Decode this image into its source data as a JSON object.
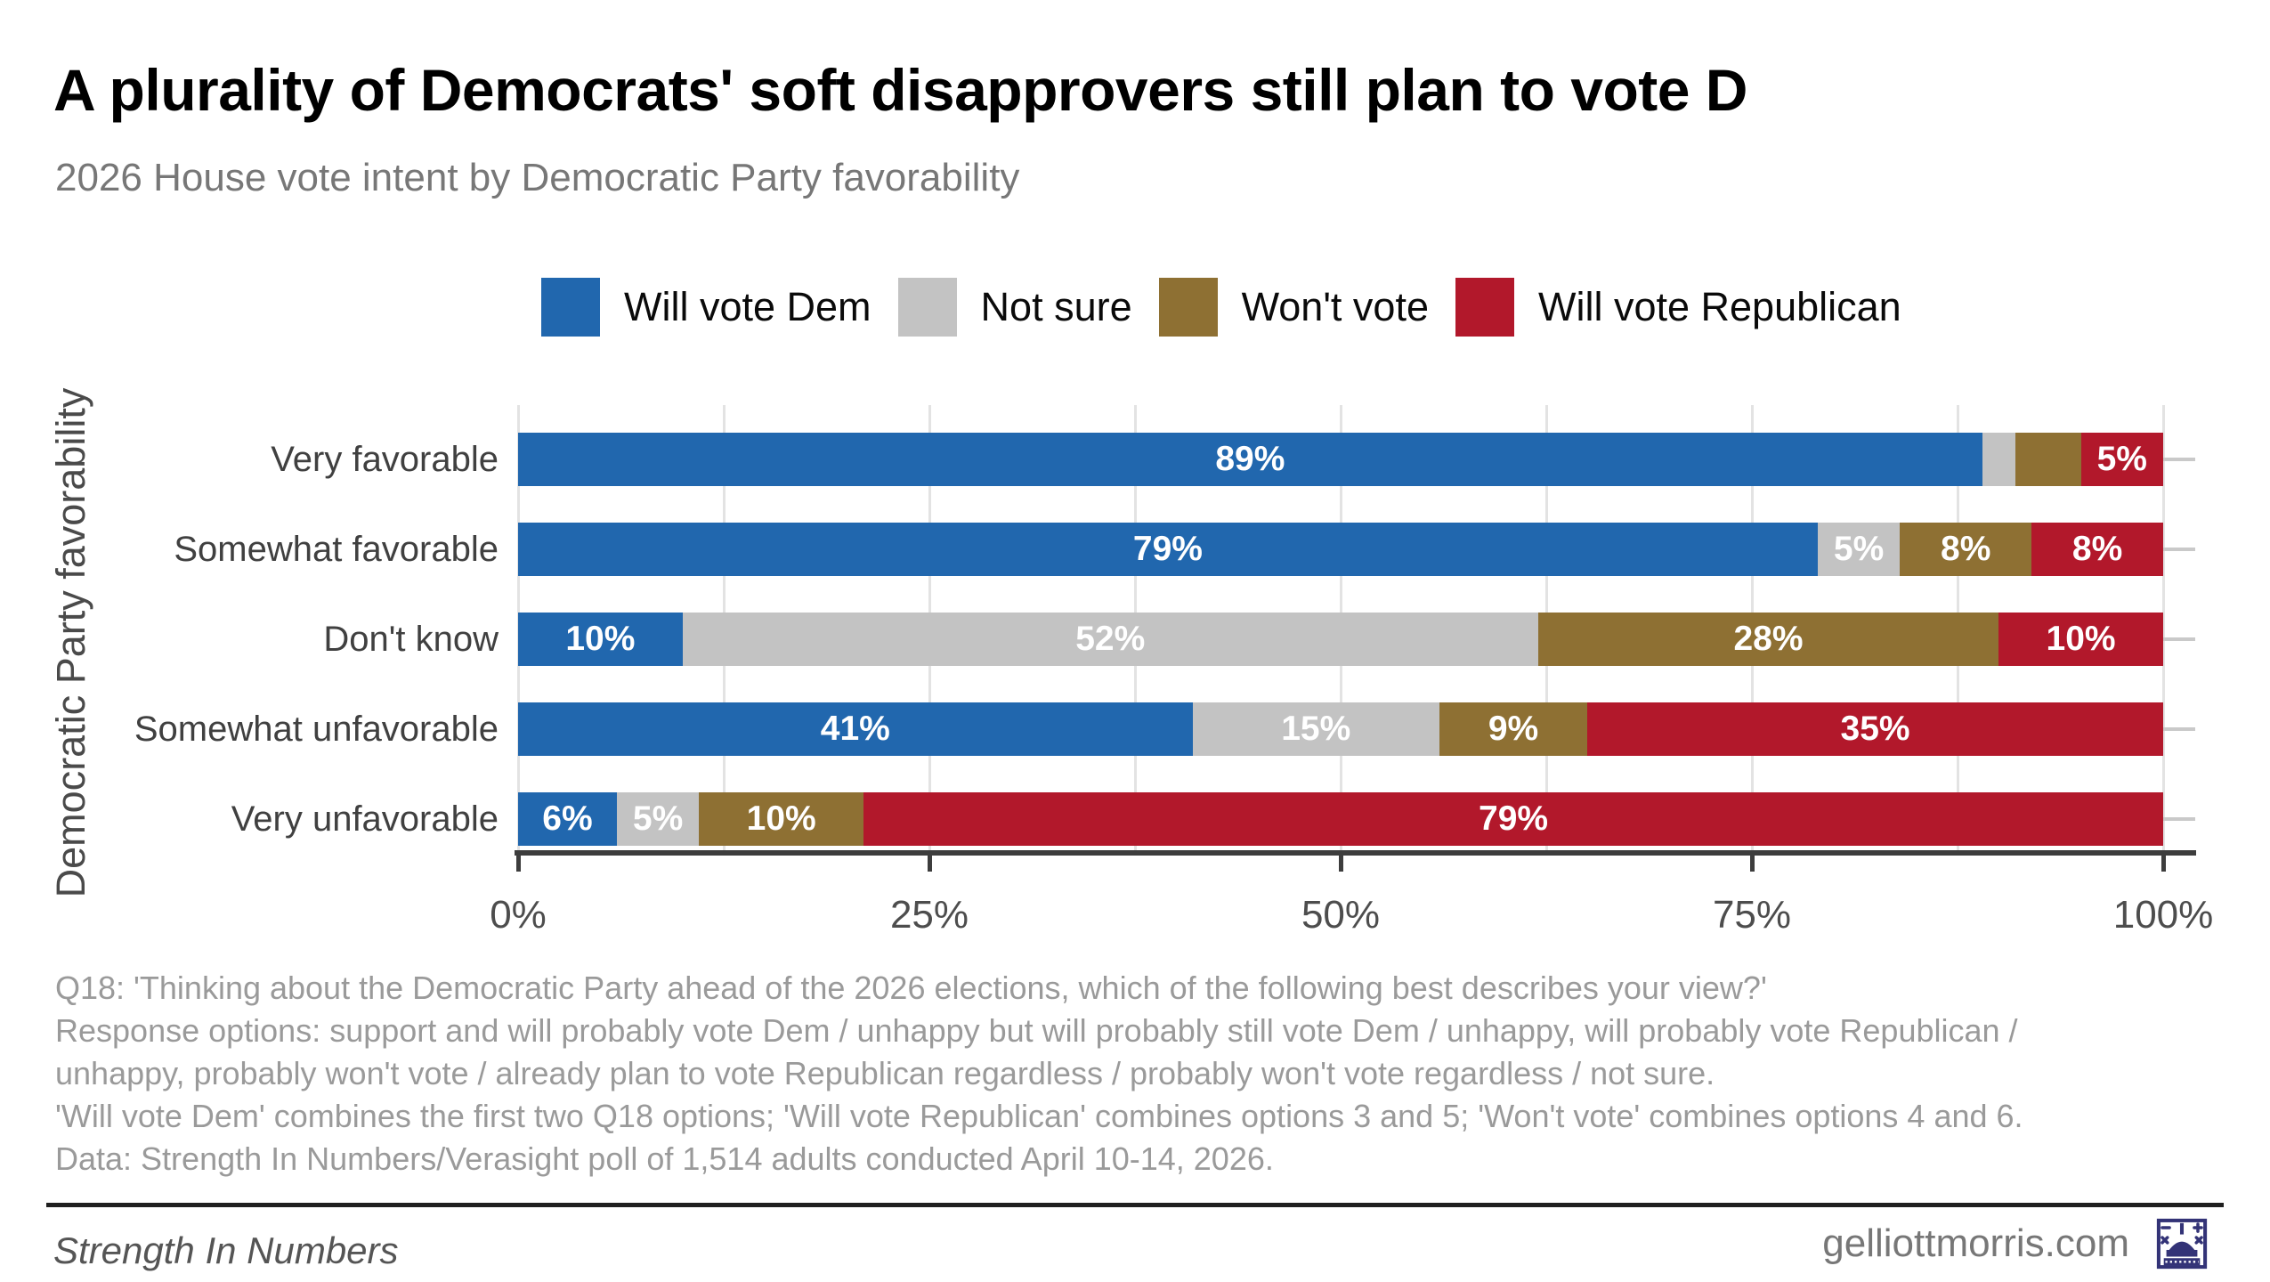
{
  "chart_data": {
    "type": "bar",
    "orientation": "horizontal",
    "stacked": true,
    "title": "A plurality of Democrats' soft disapprovers still plan to vote D",
    "subtitle": "2026 House vote intent by Democratic Party favorability",
    "ylabel": "Democratic Party favorability",
    "xlabel": "",
    "categories": [
      "Very favorable",
      "Somewhat favorable",
      "Don't know",
      "Somewhat unfavorable",
      "Very unfavorable"
    ],
    "series": [
      {
        "name": "Will vote Dem",
        "color": "#2167AE",
        "values": [
          89,
          79,
          10,
          41,
          6
        ]
      },
      {
        "name": "Not sure",
        "color": "#C3C3C3",
        "values": [
          2,
          5,
          52,
          15,
          5
        ]
      },
      {
        "name": "Won't vote",
        "color": "#8E7033",
        "values": [
          4,
          8,
          28,
          9,
          10
        ]
      },
      {
        "name": "Will vote Republican",
        "color": "#B2182B",
        "values": [
          5,
          8,
          10,
          35,
          79
        ]
      }
    ],
    "value_suffix": "%",
    "label_min_pct_to_show": 5,
    "bar_label_color": "#ffffff",
    "xlim": [
      0,
      100
    ],
    "x_ticks": [
      {
        "pct": 0,
        "label": "0%"
      },
      {
        "pct": 25,
        "label": "25%"
      },
      {
        "pct": 50,
        "label": "50%"
      },
      {
        "pct": 75,
        "label": "75%"
      },
      {
        "pct": 100,
        "label": "100%"
      }
    ],
    "grid": true,
    "gridline_step_pct": 12.5,
    "legend_position": "top"
  },
  "caption": {
    "lines": [
      "Q18: 'Thinking about the Democratic Party ahead of the 2026 elections, which of the following best describes your view?'",
      "Response options: support and will probably vote Dem / unhappy but will probably still vote Dem / unhappy, will probably vote Republican /",
      "unhappy, probably won't vote / already plan to vote Republican regardless / probably won't vote regardless / not sure.",
      "'Will vote Dem' combines the first two Q18 options; 'Will vote Republican' combines options 3 and 5; 'Won't vote' combines options 4 and 6.",
      "Data: Strength In Numbers/Verasight poll of 1,514 adults conducted April 10-14, 2026."
    ]
  },
  "footer": {
    "brand": "Strength In Numbers",
    "site": "gelliottmorris.com",
    "logo_icon": "capitol-building-with-math-symbols",
    "logo_color": "#333377"
  }
}
